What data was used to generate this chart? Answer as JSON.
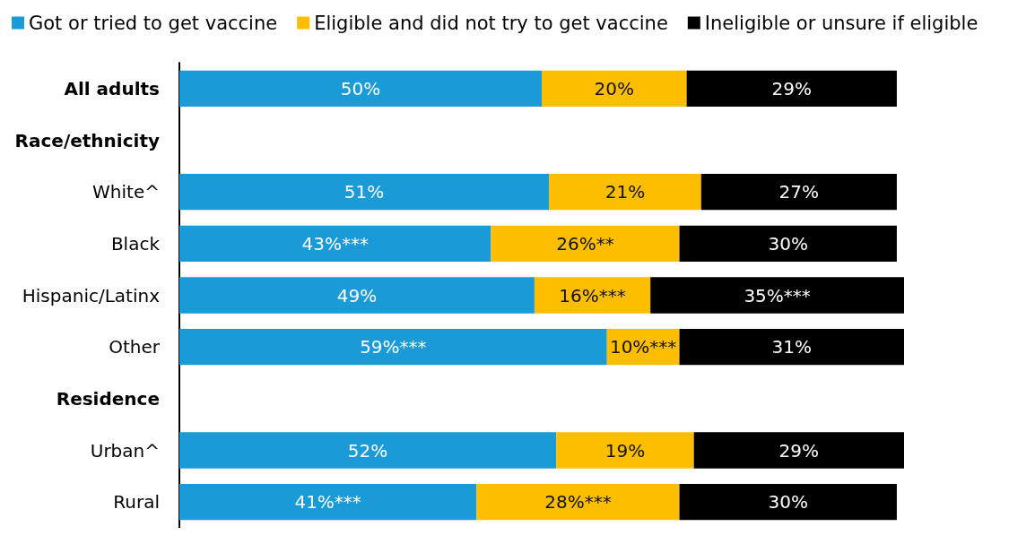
{
  "chart_data": {
    "type": "bar",
    "orientation": "horizontal",
    "stacked": true,
    "legend": "top left",
    "categories": [
      "All adults",
      "Race/ethnicity",
      "White^",
      "Black",
      "Hispanic/Latinx",
      "Other",
      "Residence",
      "Urban^",
      "Rural"
    ],
    "series": [
      {
        "name": "Got or tried to get vaccine",
        "color": "#1a9ad6",
        "values": [
          50,
          null,
          51,
          43,
          49,
          59,
          null,
          52,
          41
        ],
        "value_labels": [
          "50%",
          null,
          "51%",
          "43%***",
          "49%",
          "59%***",
          null,
          "52%",
          "41%***"
        ]
      },
      {
        "name": "Eligible and did not try to get vaccine",
        "color": "#fdbe00",
        "values": [
          20,
          null,
          21,
          26,
          16,
          10,
          null,
          19,
          28
        ],
        "value_labels": [
          "20%",
          null,
          "21%",
          "26%**",
          "16%***",
          "10%***",
          null,
          "19%",
          "28%***"
        ]
      },
      {
        "name": "Ineligible or unsure if eligible",
        "color": "#000000",
        "values": [
          29,
          null,
          27,
          30,
          35,
          31,
          null,
          29,
          30
        ],
        "value_labels": [
          "29%",
          null,
          "27%",
          "30%",
          "35%***",
          "31%",
          null,
          "29%",
          "30%"
        ]
      }
    ]
  }
}
